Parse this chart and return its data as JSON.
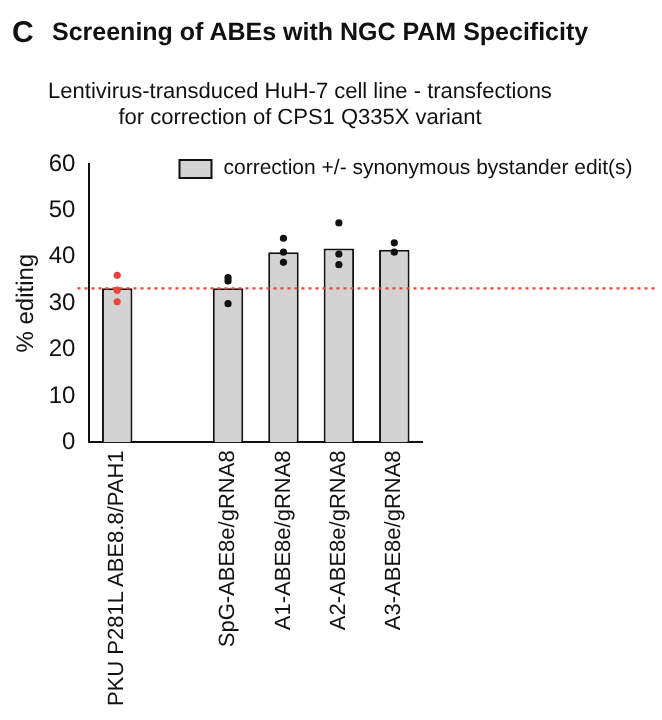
{
  "chart_data": {
    "type": "bar",
    "title": "Screening of ABEs with NGC PAM Specificity",
    "subtitle": "Lentivirus-transduced HuH-7 cell line - transfections\nfor correction of CPS1 Q335X variant",
    "ylabel": "% editing",
    "annotations": [
      "C"
    ],
    "categories": [
      "PKU P281L ABE8.8/PAH1",
      null,
      "SpG-ABE8e/gRNA8",
      "A1-ABE8e/gRNA8",
      "A2-ABE8e/gRNA8",
      "A3-ABE8e/gRNA8"
    ],
    "series": [
      {
        "name": "correction +/- synonymous bystander edit(s)",
        "color": "#d3d3d3",
        "values": [
          33.2,
          null,
          33.2,
          41,
          41.8,
          41.5
        ]
      },
      {
        "type": "scatter",
        "x": [
          "PKU P281L ABE8.8/PAH1",
          "PKU P281L ABE8.8/PAH1",
          "PKU P281L ABE8.8/PAH1",
          "SpG-ABE8e/gRNA8",
          "SpG-ABE8e/gRNA8",
          "SpG-ABE8e/gRNA8",
          "A1-ABE8e/gRNA8",
          "A1-ABE8e/gRNA8",
          "A1-ABE8e/gRNA8",
          "A2-ABE8e/gRNA8",
          "A2-ABE8e/gRNA8",
          "A2-ABE8e/gRNA8",
          "A3-ABE8e/gRNA8",
          "A3-ABE8e/gRNA8",
          "A3-ABE8e/gRNA8"
        ],
        "values": [
          36,
          32.8,
          30.3,
          35.5,
          34.8,
          29.9,
          44,
          41,
          38.8,
          47.3,
          40.6,
          38.3,
          43,
          null,
          41
        ],
        "colors": [
          "#e8453c",
          "#e8453c",
          "#e8453c",
          "#111111",
          "#111111",
          "#111111",
          "#111111",
          "#111111",
          "#111111",
          "#111111",
          "#111111",
          "#111111",
          "#111111",
          "#111111",
          "#111111"
        ]
      }
    ],
    "ylim": [
      0,
      60
    ],
    "yticks": [
      0,
      10,
      20,
      30,
      40,
      50,
      60
    ],
    "grid": false,
    "legend": "top right",
    "marker": "circle",
    "ref_lines": [
      {
        "axis": "y",
        "value": 33.2,
        "color": "#e8453c",
        "line_style": "dotted"
      }
    ]
  }
}
